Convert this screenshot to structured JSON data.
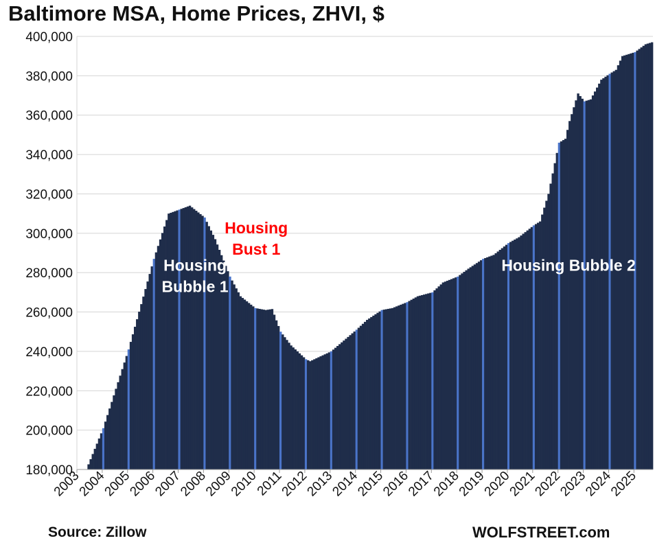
{
  "chart_data": {
    "type": "bar",
    "title": "Baltimore MSA, Home Prices, ZHVI, $",
    "bar_color": "#1f2d4a",
    "january_marker_color": "#4a74c9",
    "grid": true,
    "ylim": [
      180000,
      400000
    ],
    "yticks": [
      "180,000",
      "200,000",
      "220,000",
      "240,000",
      "260,000",
      "280,000",
      "300,000",
      "320,000",
      "340,000",
      "360,000",
      "380,000",
      "400,000"
    ],
    "ytick_values": [
      180000,
      200000,
      220000,
      240000,
      260000,
      280000,
      300000,
      320000,
      340000,
      360000,
      380000,
      400000
    ],
    "xticks": [
      "2003",
      "2004",
      "2005",
      "2006",
      "2007",
      "2008",
      "2009",
      "2010",
      "2011",
      "2012",
      "2013",
      "2014",
      "2015",
      "2016",
      "2017",
      "2018",
      "2019",
      "2020",
      "2021",
      "2022",
      "2023",
      "2024",
      "2025"
    ],
    "start": "2003-01",
    "end": "2025-09",
    "x_anchor_dates": [
      "2003-01",
      "2003-05",
      "2004-01",
      "2005-01",
      "2006-01",
      "2006-08",
      "2007-01",
      "2007-06",
      "2008-01",
      "2008-06",
      "2009-01",
      "2009-06",
      "2010-01",
      "2010-06",
      "2010-09",
      "2011-01",
      "2011-06",
      "2012-01",
      "2012-03",
      "2013-01",
      "2014-01",
      "2014-06",
      "2015-01",
      "2015-06",
      "2016-01",
      "2016-06",
      "2017-01",
      "2017-06",
      "2018-01",
      "2018-06",
      "2019-01",
      "2019-06",
      "2020-01",
      "2020-06",
      "2021-01",
      "2021-04",
      "2021-08",
      "2022-01",
      "2022-04",
      "2022-06",
      "2022-10",
      "2023-01",
      "2023-04",
      "2023-09",
      "2024-01",
      "2024-04",
      "2024-07",
      "2025-01",
      "2025-06",
      "2025-09"
    ],
    "y_anchor_values": [
      180000,
      180000,
      201000,
      241000,
      287000,
      310000,
      312000,
      314000,
      308000,
      297000,
      278000,
      268000,
      262000,
      261000,
      261500,
      250000,
      243000,
      236000,
      235000,
      240000,
      251000,
      256000,
      261000,
      262000,
      265000,
      268000,
      270000,
      275000,
      278000,
      282000,
      287000,
      289000,
      295000,
      298000,
      304000,
      306000,
      320000,
      346000,
      348000,
      357000,
      371000,
      367000,
      368000,
      378000,
      381000,
      383000,
      390000,
      392000,
      396000,
      397000
    ],
    "annotations": [
      {
        "text_lines": [
          "Housing",
          "Bubble 1"
        ],
        "color": "#ffffff",
        "x": "2007-09",
        "y": 281000
      },
      {
        "text_lines": [
          "Housing",
          "Bust 1"
        ],
        "color": "#ff0000",
        "x": "2010-02",
        "y": 300000
      },
      {
        "text_lines": [
          "Housing Bubble 2"
        ],
        "color": "#ffffff",
        "x": "2022-06",
        "y": 281000
      }
    ]
  },
  "footer": {
    "source": "Source: Zillow",
    "brand": "WOLFSTREET.com"
  }
}
